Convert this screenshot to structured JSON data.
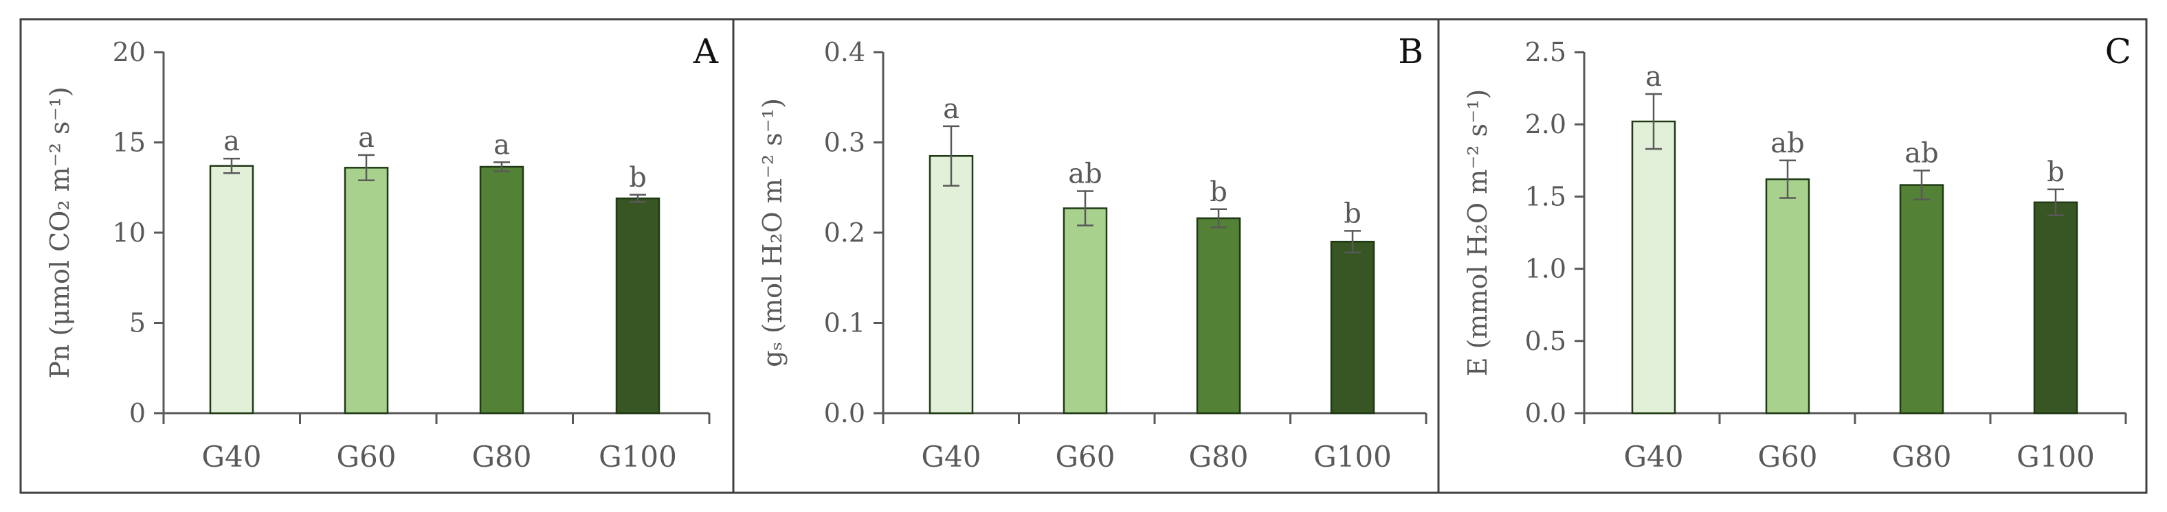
{
  "colors": {
    "bar_fills": [
      "#e2efd9",
      "#a9d18e",
      "#538135",
      "#375623"
    ],
    "axis": "#595959",
    "border": "#404040"
  },
  "chart_data": [
    {
      "type": "bar",
      "panel_label": "A",
      "categories": [
        "G40",
        "G60",
        "G80",
        "G100"
      ],
      "values": [
        13.7,
        13.6,
        13.65,
        11.9
      ],
      "errors": [
        0.4,
        0.7,
        0.25,
        0.2
      ],
      "significance": [
        "a",
        "a",
        "a",
        "b"
      ],
      "ylabel": "Pn (μmol CO₂ m⁻² s⁻¹)",
      "ylim": [
        0,
        20
      ],
      "yticks": [
        0,
        5,
        10,
        15,
        20
      ],
      "ytick_labels": [
        "0",
        "5",
        "10",
        "15",
        "20"
      ]
    },
    {
      "type": "bar",
      "panel_label": "B",
      "categories": [
        "G40",
        "G60",
        "G80",
        "G100"
      ],
      "values": [
        0.285,
        0.227,
        0.216,
        0.19
      ],
      "errors": [
        0.033,
        0.019,
        0.01,
        0.012
      ],
      "significance": [
        "a",
        "ab",
        "b",
        "b"
      ],
      "ylabel": "gₛ (mol H₂O m⁻² s⁻¹)",
      "ylim": [
        0,
        0.4
      ],
      "yticks": [
        0,
        0.1,
        0.2,
        0.3,
        0.4
      ],
      "ytick_labels": [
        "0.0",
        "0.1",
        "0.2",
        "0.3",
        "0.4"
      ]
    },
    {
      "type": "bar",
      "panel_label": "C",
      "categories": [
        "G40",
        "G60",
        "G80",
        "G100"
      ],
      "values": [
        2.02,
        1.62,
        1.58,
        1.46
      ],
      "errors": [
        0.19,
        0.13,
        0.1,
        0.09
      ],
      "significance": [
        "a",
        "ab",
        "ab",
        "b"
      ],
      "ylabel": "E (mmol H₂O m⁻² s⁻¹)",
      "ylim": [
        0,
        2.5
      ],
      "yticks": [
        0,
        0.5,
        1,
        1.5,
        2,
        2.5
      ],
      "ytick_labels": [
        "0.0",
        "0.5",
        "1.0",
        "1.5",
        "2.0",
        "2.5"
      ]
    }
  ]
}
